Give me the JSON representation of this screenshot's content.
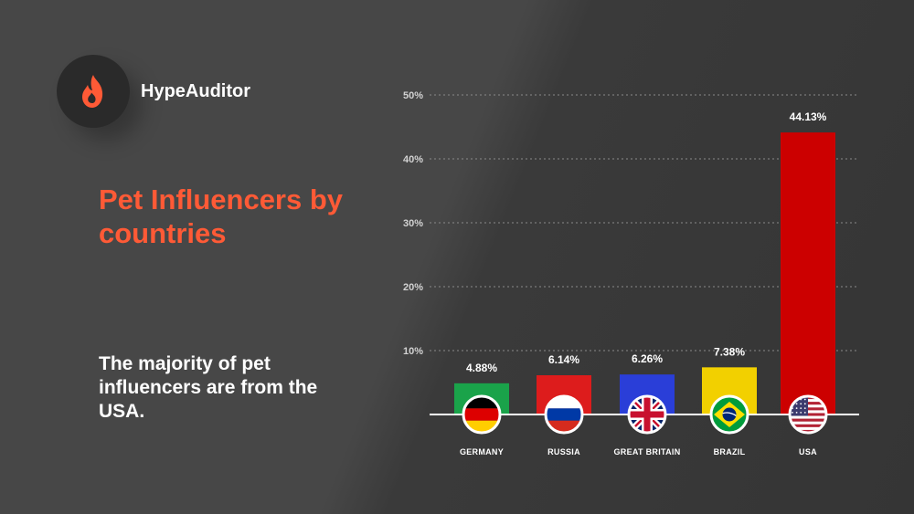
{
  "brand": {
    "name": "HypeAuditor",
    "logo_icon": "flame-icon",
    "accent_color": "#ff5a36"
  },
  "title": "Pet Influencers by countries",
  "subtitle": "The majority of pet influencers are from the USA.",
  "chart_data": {
    "type": "bar",
    "categories": [
      "GERMANY",
      "RUSSIA",
      "GREAT BRITAIN",
      "BRAZIL",
      "USA"
    ],
    "values": [
      4.88,
      6.14,
      6.26,
      7.38,
      44.13
    ],
    "value_labels": [
      "4.88%",
      "6.14%",
      "6.26%",
      "7.38%",
      "44.13%"
    ],
    "colors": [
      "#1aa34a",
      "#dd1c1c",
      "#2a3ed8",
      "#f2d000",
      "#cc0000"
    ],
    "flag_icons": [
      "germany-flag-icon",
      "russia-flag-icon",
      "great-britain-flag-icon",
      "brazil-flag-icon",
      "usa-flag-icon"
    ],
    "yticks": [
      10,
      20,
      30,
      40,
      50
    ],
    "ytick_labels": [
      "10%",
      "20%",
      "30%",
      "40%",
      "50%"
    ],
    "ylim": [
      0,
      50
    ],
    "grid": true,
    "grid_style": "dashed",
    "legend": "none",
    "xlabel": "",
    "ylabel": ""
  }
}
